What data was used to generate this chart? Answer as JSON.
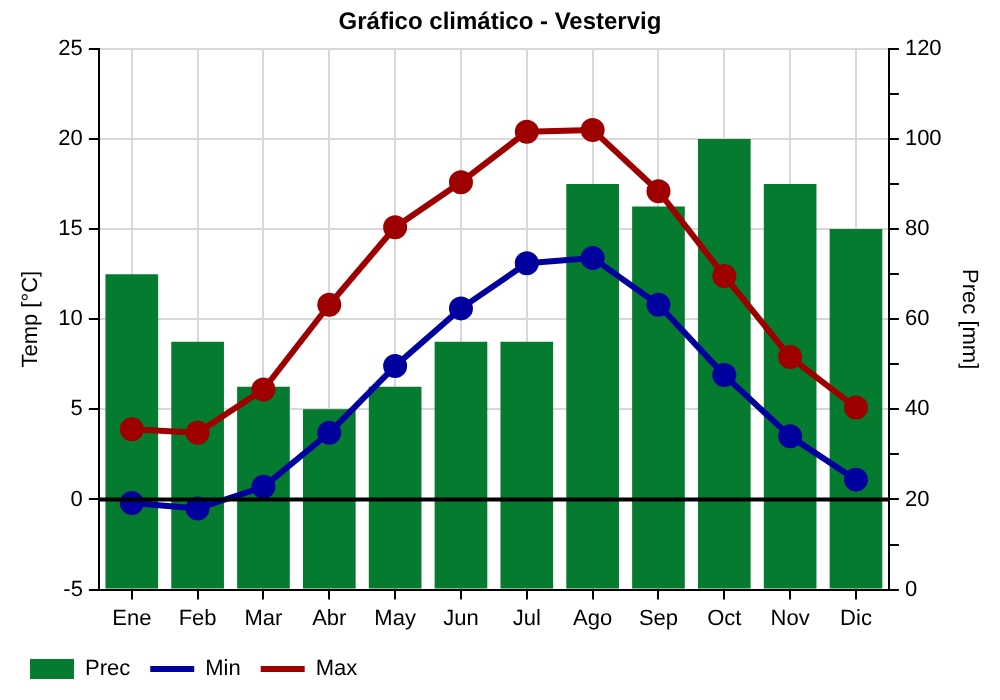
{
  "chart_data": {
    "type": "bar",
    "title": "Gráfico climático - Vestervig",
    "ylabel": "Temp [°C]",
    "y2label": "Prec [mm]",
    "categories": [
      "Ene",
      "Feb",
      "Mar",
      "Abr",
      "May",
      "Jun",
      "Jul",
      "Ago",
      "Sep",
      "Oct",
      "Nov",
      "Dic"
    ],
    "series": [
      {
        "name": "Prec",
        "axis": "y2",
        "color": "#047b2e",
        "values": [
          70,
          55,
          45,
          40,
          45,
          55,
          55,
          90,
          85,
          100,
          90,
          80
        ]
      },
      {
        "name": "Min",
        "type": "line",
        "axis": "y",
        "color": "#00009e",
        "values": [
          -0.2,
          -0.5,
          0.7,
          3.7,
          7.4,
          10.6,
          13.1,
          13.4,
          10.8,
          6.9,
          3.5,
          1.1
        ]
      },
      {
        "name": "Max",
        "type": "line",
        "axis": "y",
        "color": "#9e0000",
        "values": [
          3.9,
          3.7,
          6.1,
          10.8,
          15.1,
          17.6,
          20.4,
          20.5,
          17.1,
          12.4,
          7.9,
          5.1
        ]
      }
    ],
    "ylim": [
      -5,
      25
    ],
    "yticks": [
      -5,
      0,
      5,
      10,
      15,
      20,
      25
    ],
    "y2lim": [
      0,
      120
    ],
    "y2ticks": [
      0,
      {
        "value": 10,
        "label": null
      },
      20,
      {
        "value": 30,
        "label": null
      },
      40,
      {
        "value": 50,
        "label": null
      },
      60,
      {
        "value": 70,
        "label": null
      },
      80,
      {
        "value": 90,
        "label": null
      },
      100,
      {
        "value": 110,
        "label": null
      },
      120
    ],
    "ref_lines": [
      {
        "axis": "y",
        "value": 0,
        "color": "#000000"
      }
    ],
    "grid": true,
    "legend": "bottom left",
    "marker": "circle",
    "line_style": "solid"
  }
}
